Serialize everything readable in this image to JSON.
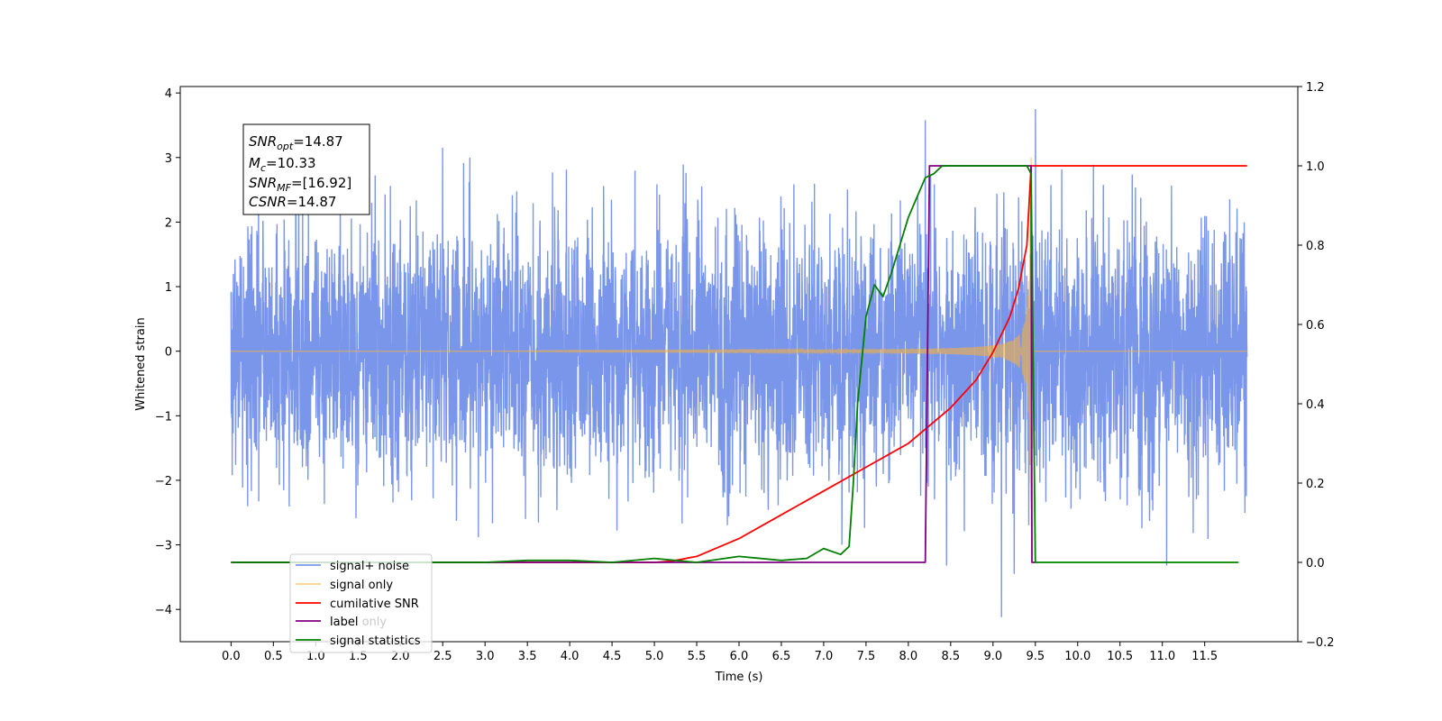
{
  "chart_data": {
    "type": "line",
    "title": "",
    "xlabel": "Time (s)",
    "ylabel": "Whitened strain",
    "y2label": "",
    "xlim": [
      -0.6,
      12.6
    ],
    "ylim": [
      -4.5,
      4.1
    ],
    "y2lim": [
      -0.2,
      1.2
    ],
    "xticks": [
      0.0,
      0.5,
      1.0,
      1.5,
      2.0,
      2.5,
      3.0,
      3.5,
      4.0,
      4.5,
      5.0,
      5.5,
      6.0,
      6.5,
      7.0,
      7.5,
      8.0,
      8.5,
      9.0,
      9.5,
      10.0,
      10.5,
      11.0,
      11.5
    ],
    "xtick_labels": [
      "0.0",
      "0.5",
      "1.0",
      "1.5",
      "2.0",
      "2.5",
      "3.0",
      "3.5",
      "4.0",
      "4.5",
      "5.0",
      "5.5",
      "6.0",
      "6.5",
      "7.0",
      "7.5",
      "8.0",
      "8.5",
      "9.0",
      "9.5",
      "10.0",
      "10.5",
      "11.0",
      "11.5"
    ],
    "yticks": [
      -4,
      -3,
      -2,
      -1,
      0,
      1,
      2,
      3,
      4
    ],
    "ytick_labels": [
      "−4",
      "−3",
      "−2",
      "−1",
      "0",
      "1",
      "2",
      "3",
      "4"
    ],
    "y2ticks": [
      -0.2,
      0.0,
      0.2,
      0.4,
      0.6,
      0.8,
      1.0,
      1.2
    ],
    "y2tick_labels": [
      "−0.2",
      "0.0",
      "0.2",
      "0.4",
      "0.6",
      "0.8",
      "1.0",
      "1.2"
    ],
    "grid": false,
    "legend_placement": "lower-left",
    "annotation": {
      "lines": [
        {
          "key": "SNR",
          "sub": "opt",
          "value": "=14.87"
        },
        {
          "key": "M",
          "sub": "c",
          "value": "=10.33"
        },
        {
          "key": "SNR",
          "sub": "MF",
          "value": "=[16.92]"
        },
        {
          "key": "CSNR",
          "sub": "",
          "value": "=14.87"
        }
      ]
    },
    "series": [
      {
        "name": "signal+ noise",
        "axis": "left",
        "color": "#4169e1",
        "kind": "noise",
        "x_range": [
          0.0,
          12.0
        ],
        "typical_amplitude": 1.6,
        "peaks": [
          {
            "x": 8.2,
            "y": 3.58
          },
          {
            "x": 9.5,
            "y": 3.75
          },
          {
            "x": 2.5,
            "y": 3.15
          },
          {
            "x": 9.1,
            "y": -4.12
          },
          {
            "x": 11.05,
            "y": -3.32
          },
          {
            "x": 9.25,
            "y": -3.45
          },
          {
            "x": 8.45,
            "y": -3.32
          }
        ]
      },
      {
        "name": "signal only",
        "axis": "left",
        "color": "#f5b041",
        "kind": "chirp",
        "x_range": [
          0.0,
          12.0
        ],
        "merger_time": 9.45,
        "end_time": 9.48
      },
      {
        "name": "cumilative SNR",
        "axis": "right",
        "color": "#ff0000",
        "x": [
          0.0,
          5.0,
          5.2,
          5.5,
          6.0,
          6.5,
          7.0,
          7.5,
          8.0,
          8.5,
          8.8,
          9.0,
          9.2,
          9.3,
          9.4,
          9.45,
          9.5,
          12.0
        ],
        "y": [
          0.0,
          0.0,
          0.003,
          0.015,
          0.06,
          0.12,
          0.18,
          0.24,
          0.3,
          0.39,
          0.46,
          0.53,
          0.62,
          0.69,
          0.8,
          1.0,
          1.0,
          1.0
        ]
      },
      {
        "name": "label",
        "axis": "right",
        "color": "#800080",
        "x": [
          0.0,
          8.2,
          8.25,
          9.45,
          9.46,
          9.5
        ],
        "y": [
          0.0,
          0.0,
          1.0,
          1.0,
          0.0,
          0.0
        ]
      },
      {
        "name": "label only",
        "axis": "right",
        "color": "#dcdcdc",
        "x": [],
        "y": []
      },
      {
        "name": "signal statistics",
        "axis": "right",
        "color": "#008000",
        "x": [
          0.0,
          3.0,
          3.5,
          4.0,
          4.5,
          5.0,
          5.5,
          6.0,
          6.5,
          6.8,
          7.0,
          7.2,
          7.3,
          7.35,
          7.4,
          7.5,
          7.6,
          7.7,
          7.8,
          7.9,
          8.0,
          8.2,
          8.3,
          8.4,
          8.5,
          9.0,
          9.3,
          9.4,
          9.45,
          9.5,
          10.0,
          11.0,
          11.9
        ],
        "y": [
          0.0,
          0.0,
          0.005,
          0.005,
          0.0,
          0.01,
          0.0,
          0.015,
          0.005,
          0.01,
          0.035,
          0.02,
          0.04,
          0.2,
          0.4,
          0.62,
          0.7,
          0.67,
          0.73,
          0.8,
          0.87,
          0.97,
          0.98,
          1.0,
          1.0,
          1.0,
          1.0,
          1.0,
          0.98,
          0.0,
          0.0,
          0.0,
          0.0
        ]
      }
    ]
  }
}
